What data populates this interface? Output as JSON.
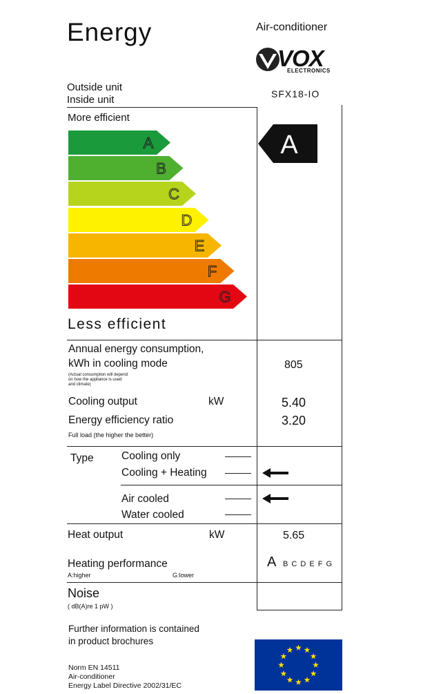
{
  "header": {
    "title": "Energy",
    "appliance": "Air-conditioner",
    "brand": {
      "name": "VOX",
      "subtitle": "ELECTRONICS"
    },
    "outside_unit_label": "Outside unit",
    "inside_unit_label": "Inside unit",
    "model": "SFX18-IO"
  },
  "scale": {
    "top_label": "More efficient",
    "bottom_label": "Less efficient",
    "classes": [
      {
        "letter": "A",
        "color": "#1a9a3a"
      },
      {
        "letter": "B",
        "color": "#4fb030"
      },
      {
        "letter": "C",
        "color": "#b7d41c"
      },
      {
        "letter": "D",
        "color": "#fff200"
      },
      {
        "letter": "E",
        "color": "#f7b500"
      },
      {
        "letter": "F",
        "color": "#ee7a00"
      },
      {
        "letter": "G",
        "color": "#e30613"
      }
    ],
    "rating": "A"
  },
  "specs": {
    "annual_label_1": "Annual energy consumption,",
    "annual_label_2": "kWh in cooling mode",
    "annual_note_1": "(Actual consumption will depend",
    "annual_note_2": "on how the appliance is used",
    "annual_note_3": "and climate)",
    "annual_value": "805",
    "cooling_label": "Cooling output",
    "cooling_unit": "kW",
    "cooling_value": "5.40",
    "eer_label": "Energy  efficiency  ratio",
    "eer_note": "Full load (the higher the better)",
    "eer_value": "3.20",
    "type_label": "Type",
    "type_options": [
      "Cooling only",
      "Cooling + Heating"
    ],
    "cooling_type_options": [
      "Air cooled",
      "Water cooled"
    ],
    "heat_label": "Heat output",
    "heat_unit": "kW",
    "heat_value": "5.65",
    "heating_perf_label": "Heating performance",
    "heating_higher": "A:higher",
    "heating_lower": "G:lower",
    "heating_class": "A",
    "heating_scale_rest": "B C D E F G",
    "noise_label": "Noise",
    "noise_unit": "( dB(A)re 1 pW )"
  },
  "footer": {
    "info_1": "Further information is contained",
    "info_2": "in product brochures",
    "norm": "Norm EN 14511",
    "appliance": "Air-conditioner",
    "directive": "Energy Label Directive 2002/31/EC"
  },
  "colors": {
    "eu_flag": "#003399",
    "eu_star": "#ffdd00"
  }
}
